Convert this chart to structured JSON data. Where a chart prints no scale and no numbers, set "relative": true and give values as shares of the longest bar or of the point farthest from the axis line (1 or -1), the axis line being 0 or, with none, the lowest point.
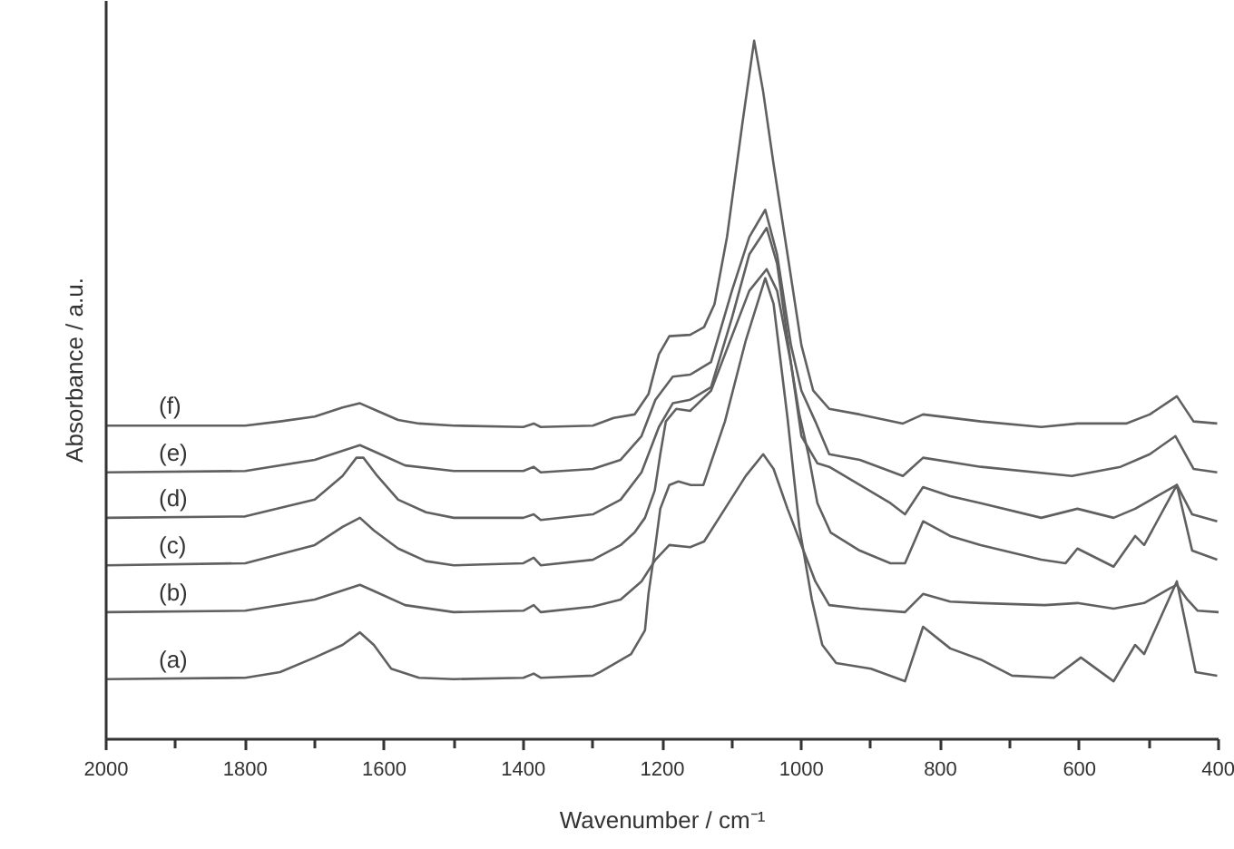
{
  "chart_data": {
    "type": "line",
    "xlabel": "Wavenumber / cm⁻¹",
    "ylabel": "Absorbance / a.u.",
    "relative": true,
    "xlim": [
      2000,
      400
    ],
    "xticks": [
      2000,
      {
        "value": 1900,
        "label": null
      },
      1800,
      {
        "value": 1700,
        "label": null
      },
      1600,
      {
        "value": 1500,
        "label": null
      },
      1400,
      {
        "value": 1300,
        "label": null
      },
      1200,
      {
        "value": 1100,
        "label": null
      },
      1000,
      {
        "value": 900,
        "label": null
      },
      800,
      {
        "value": 700,
        "label": null
      },
      600,
      {
        "value": 500,
        "label": null
      },
      400
    ],
    "tick_labels": "x",
    "grid": false,
    "line_style": "solid",
    "series": [
      {
        "name": "(a)",
        "color": "#606060",
        "x": [
          2000,
          1800,
          1750,
          1700,
          1660,
          1635,
          1615,
          1590,
          1550,
          1500,
          1400,
          1385,
          1375,
          1300,
          1290,
          1245,
          1225,
          1220,
          1211,
          1203,
          1190,
          1177,
          1159,
          1141,
          1110,
          1080,
          1052,
          1040,
          1020,
          1003,
          985,
          970,
          950,
          900,
          851,
          825,
          786,
          742,
          697,
          637,
          598,
          551,
          520,
          507,
          460,
          433,
          402
        ],
        "values": [
          0.086,
          0.088,
          0.096,
          0.117,
          0.135,
          0.153,
          0.135,
          0.101,
          0.088,
          0.086,
          0.088,
          0.094,
          0.088,
          0.091,
          0.096,
          0.122,
          0.156,
          0.208,
          0.27,
          0.33,
          0.364,
          0.369,
          0.364,
          0.364,
          0.455,
          0.571,
          0.66,
          0.623,
          0.46,
          0.304,
          0.2,
          0.135,
          0.109,
          0.101,
          0.083,
          0.161,
          0.13,
          0.114,
          0.091,
          0.088,
          0.117,
          0.083,
          0.135,
          0.122,
          0.226,
          0.096,
          0.091
        ]
      },
      {
        "name": "(b)",
        "color": "#606060",
        "x": [
          2000,
          1800,
          1700,
          1660,
          1635,
          1610,
          1570,
          1500,
          1400,
          1385,
          1375,
          1300,
          1260,
          1230,
          1210,
          1190,
          1160,
          1140,
          1110,
          1080,
          1055,
          1040,
          1020,
          1000,
          980,
          960,
          916,
          851,
          825,
          786,
          742,
          650,
          603,
          551,
          507,
          470,
          460,
          445,
          430,
          400
        ],
        "values": [
          0.182,
          0.184,
          0.2,
          0.213,
          0.221,
          0.21,
          0.192,
          0.182,
          0.184,
          0.192,
          0.182,
          0.19,
          0.2,
          0.226,
          0.257,
          0.278,
          0.275,
          0.283,
          0.33,
          0.377,
          0.408,
          0.387,
          0.33,
          0.278,
          0.226,
          0.192,
          0.187,
          0.182,
          0.208,
          0.197,
          0.195,
          0.192,
          0.195,
          0.187,
          0.195,
          0.216,
          0.221,
          0.2,
          0.184,
          0.182
        ]
      },
      {
        "name": "(c)",
        "color": "#606060",
        "x": [
          2000,
          1800,
          1700,
          1660,
          1635,
          1615,
          1580,
          1540,
          1500,
          1400,
          1385,
          1375,
          1300,
          1260,
          1240,
          1225,
          1211,
          1203,
          1195,
          1180,
          1160,
          1130,
          1100,
          1075,
          1050,
          1035,
          1015,
          1003,
          990,
          977,
          958,
          916,
          872,
          851,
          825,
          786,
          742,
          655,
          620,
          603,
          551,
          520,
          507,
          460,
          438,
          402
        ],
        "values": [
          0.249,
          0.252,
          0.278,
          0.304,
          0.317,
          0.299,
          0.273,
          0.255,
          0.249,
          0.252,
          0.26,
          0.249,
          0.257,
          0.278,
          0.296,
          0.317,
          0.356,
          0.408,
          0.455,
          0.473,
          0.47,
          0.499,
          0.577,
          0.642,
          0.673,
          0.642,
          0.538,
          0.465,
          0.408,
          0.338,
          0.296,
          0.27,
          0.252,
          0.252,
          0.312,
          0.291,
          0.278,
          0.257,
          0.252,
          0.273,
          0.247,
          0.291,
          0.278,
          0.364,
          0.27,
          0.257
        ]
      },
      {
        "name": "(d)",
        "color": "#606060",
        "x": [
          2000,
          1800,
          1700,
          1660,
          1640,
          1630,
          1610,
          1580,
          1540,
          1500,
          1400,
          1385,
          1375,
          1300,
          1260,
          1230,
          1205,
          1185,
          1160,
          1130,
          1100,
          1075,
          1050,
          1035,
          1015,
          1000,
          977,
          960,
          916,
          872,
          851,
          825,
          786,
          742,
          655,
          603,
          551,
          520,
          460,
          438,
          402
        ],
        "values": [
          0.317,
          0.319,
          0.343,
          0.377,
          0.403,
          0.403,
          0.377,
          0.343,
          0.325,
          0.317,
          0.317,
          0.322,
          0.314,
          0.322,
          0.343,
          0.382,
          0.447,
          0.481,
          0.486,
          0.504,
          0.603,
          0.694,
          0.732,
          0.681,
          0.538,
          0.434,
          0.395,
          0.39,
          0.364,
          0.338,
          0.322,
          0.361,
          0.348,
          0.338,
          0.317,
          0.33,
          0.317,
          0.33,
          0.364,
          0.322,
          0.312
        ]
      },
      {
        "name": "(e)",
        "color": "#606060",
        "x": [
          2000,
          1800,
          1700,
          1660,
          1635,
          1610,
          1570,
          1500,
          1400,
          1385,
          1375,
          1300,
          1260,
          1230,
          1210,
          1185,
          1160,
          1130,
          1100,
          1075,
          1052,
          1035,
          1015,
          1000,
          980,
          960,
          916,
          854,
          825,
          742,
          611,
          541,
          499,
          462,
          436,
          402
        ],
        "values": [
          0.382,
          0.384,
          0.4,
          0.413,
          0.421,
          0.41,
          0.392,
          0.384,
          0.384,
          0.39,
          0.382,
          0.387,
          0.4,
          0.434,
          0.486,
          0.519,
          0.522,
          0.54,
          0.642,
          0.719,
          0.758,
          0.694,
          0.564,
          0.499,
          0.455,
          0.408,
          0.4,
          0.377,
          0.403,
          0.39,
          0.377,
          0.39,
          0.408,
          0.434,
          0.387,
          0.382
        ]
      },
      {
        "name": "(f)",
        "color": "#606060",
        "x": [
          2000,
          1800,
          1750,
          1700,
          1660,
          1635,
          1610,
          1580,
          1550,
          1500,
          1400,
          1385,
          1375,
          1300,
          1270,
          1240,
          1220,
          1205,
          1190,
          1160,
          1140,
          1125,
          1107,
          1085,
          1068,
          1055,
          1040,
          1020,
          1000,
          983,
          960,
          916,
          854,
          825,
          742,
          655,
          603,
          533,
          499,
          460,
          436,
          402
        ],
        "values": [
          0.449,
          0.449,
          0.455,
          0.462,
          0.475,
          0.481,
          0.47,
          0.457,
          0.452,
          0.449,
          0.447,
          0.452,
          0.447,
          0.449,
          0.46,
          0.465,
          0.494,
          0.551,
          0.577,
          0.579,
          0.59,
          0.623,
          0.719,
          0.881,
          1.0,
          0.927,
          0.823,
          0.694,
          0.564,
          0.499,
          0.473,
          0.465,
          0.452,
          0.465,
          0.455,
          0.447,
          0.452,
          0.452,
          0.465,
          0.491,
          0.455,
          0.452
        ]
      }
    ]
  }
}
